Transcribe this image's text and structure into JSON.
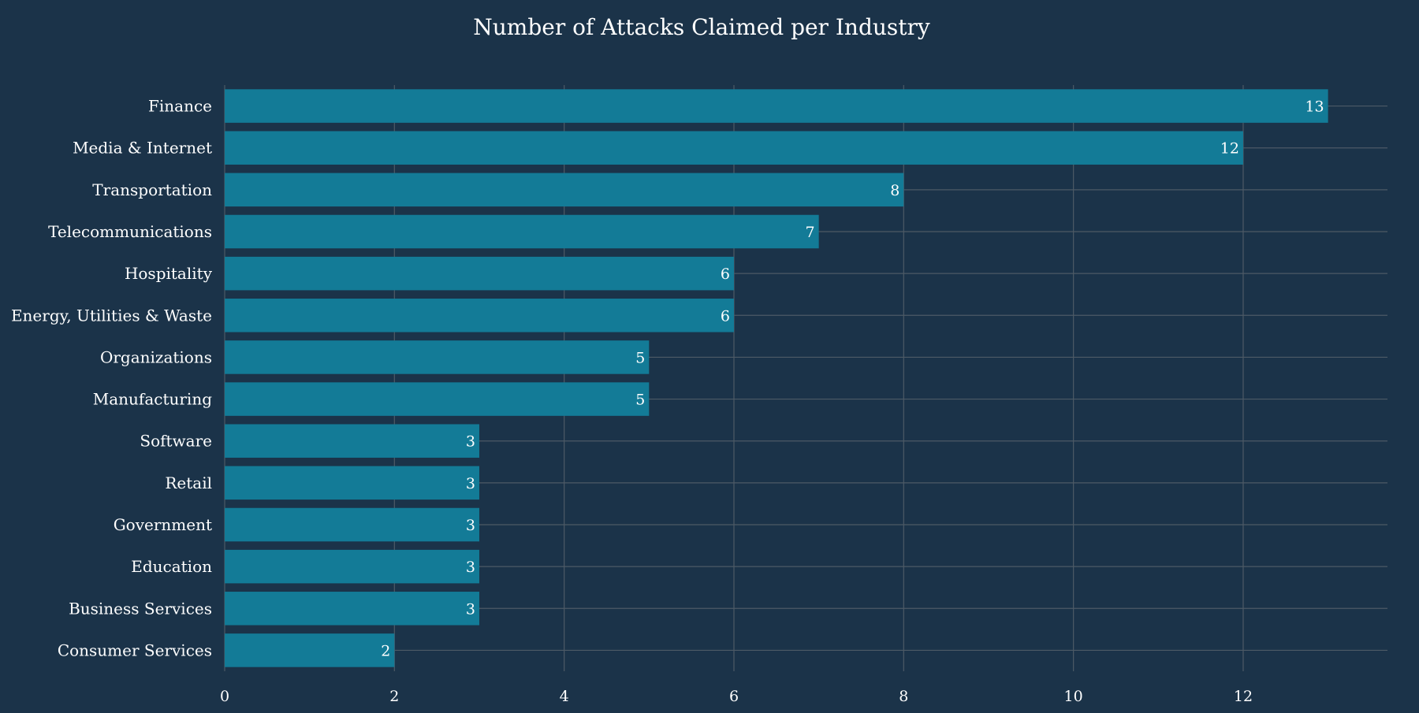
{
  "chart_data": {
    "type": "bar",
    "orientation": "horizontal",
    "title": "Number of Attacks Claimed per Industry",
    "xlabel": "",
    "ylabel": "",
    "categories": [
      "Finance",
      "Media & Internet",
      "Transportation",
      "Telecommunications",
      "Hospitality",
      "Energy, Utilities & Waste",
      "Organizations",
      "Manufacturing",
      "Software",
      "Retail",
      "Government",
      "Education",
      "Business Services",
      "Consumer Services"
    ],
    "values": [
      13,
      12,
      8,
      7,
      6,
      6,
      5,
      5,
      3,
      3,
      3,
      3,
      3,
      2
    ],
    "xlim": [
      0,
      13.7
    ],
    "xticks": [
      0,
      2,
      4,
      6,
      8,
      10,
      12
    ],
    "grid": true,
    "data_labels": true,
    "colors": {
      "background": "#1b3349",
      "bar": "#137b97",
      "grid": "#4d5a66",
      "text": "#ffffff"
    }
  }
}
